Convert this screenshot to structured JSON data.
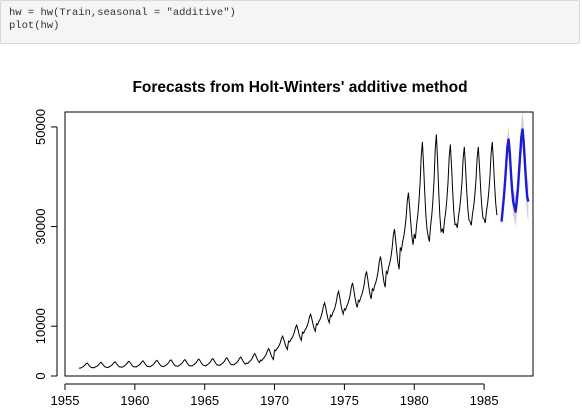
{
  "code": {
    "lines": [
      "hw = hw(Train,seasonal = \"additive\")",
      "plot(hw)"
    ]
  },
  "chart_data": {
    "type": "line",
    "title": "Forecasts from Holt-Winters' additive method",
    "xlabel": "",
    "ylabel": "",
    "xlim": [
      1955,
      1988.5
    ],
    "ylim": [
      0,
      53000
    ],
    "x_ticks": [
      1955,
      1960,
      1965,
      1970,
      1975,
      1980,
      1985
    ],
    "y_ticks": [
      0,
      10000,
      30000,
      50000
    ],
    "grid": false,
    "legend": "none",
    "seasonal_shape": [
      0.0,
      -0.05,
      0.1,
      0.2,
      0.35,
      0.55,
      0.85,
      1.0,
      0.75,
      0.45,
      0.2,
      0.05
    ],
    "history": {
      "color": "#000000",
      "start_year": 1956.0,
      "frequency": 12,
      "yearly_min": [
        1600,
        1700,
        1750,
        1800,
        1850,
        1900,
        1950,
        2000,
        2050,
        2100,
        2200,
        2300,
        2600,
        3200,
        5200,
        7000,
        8800,
        10500,
        12200,
        13500,
        15200,
        17500,
        21000,
        25800,
        28500,
        28000,
        29500,
        30500,
        31000,
        31500
      ],
      "yearly_amp": [
        1000,
        1050,
        1100,
        1150,
        1200,
        1250,
        1300,
        1300,
        1350,
        1400,
        1450,
        1500,
        1900,
        2300,
        2800,
        3200,
        3600,
        4200,
        4800,
        5200,
        5800,
        6500,
        8500,
        11000,
        18500,
        20500,
        17000,
        15500,
        15000,
        15500
      ]
    },
    "forecast": {
      "color": "#1c1cd6",
      "band_color": "#c8c8d8",
      "start_year": 1986.25,
      "values": [
        31000,
        33500,
        36000,
        39000,
        42500,
        46000,
        47500,
        45000,
        41000,
        37500,
        35000,
        34000,
        33000,
        35000,
        37500,
        41000,
        44500,
        48000,
        49500,
        47000,
        43000,
        39000,
        36000,
        35000
      ],
      "band_halfwidth": [
        1200,
        1400,
        1600,
        1800,
        2000,
        2200,
        2400,
        2500,
        2600,
        2700,
        2800,
        2900,
        3000,
        3100,
        3200,
        3300,
        3400,
        3500,
        3600,
        3700,
        3800,
        3900,
        4000,
        4100
      ]
    }
  }
}
